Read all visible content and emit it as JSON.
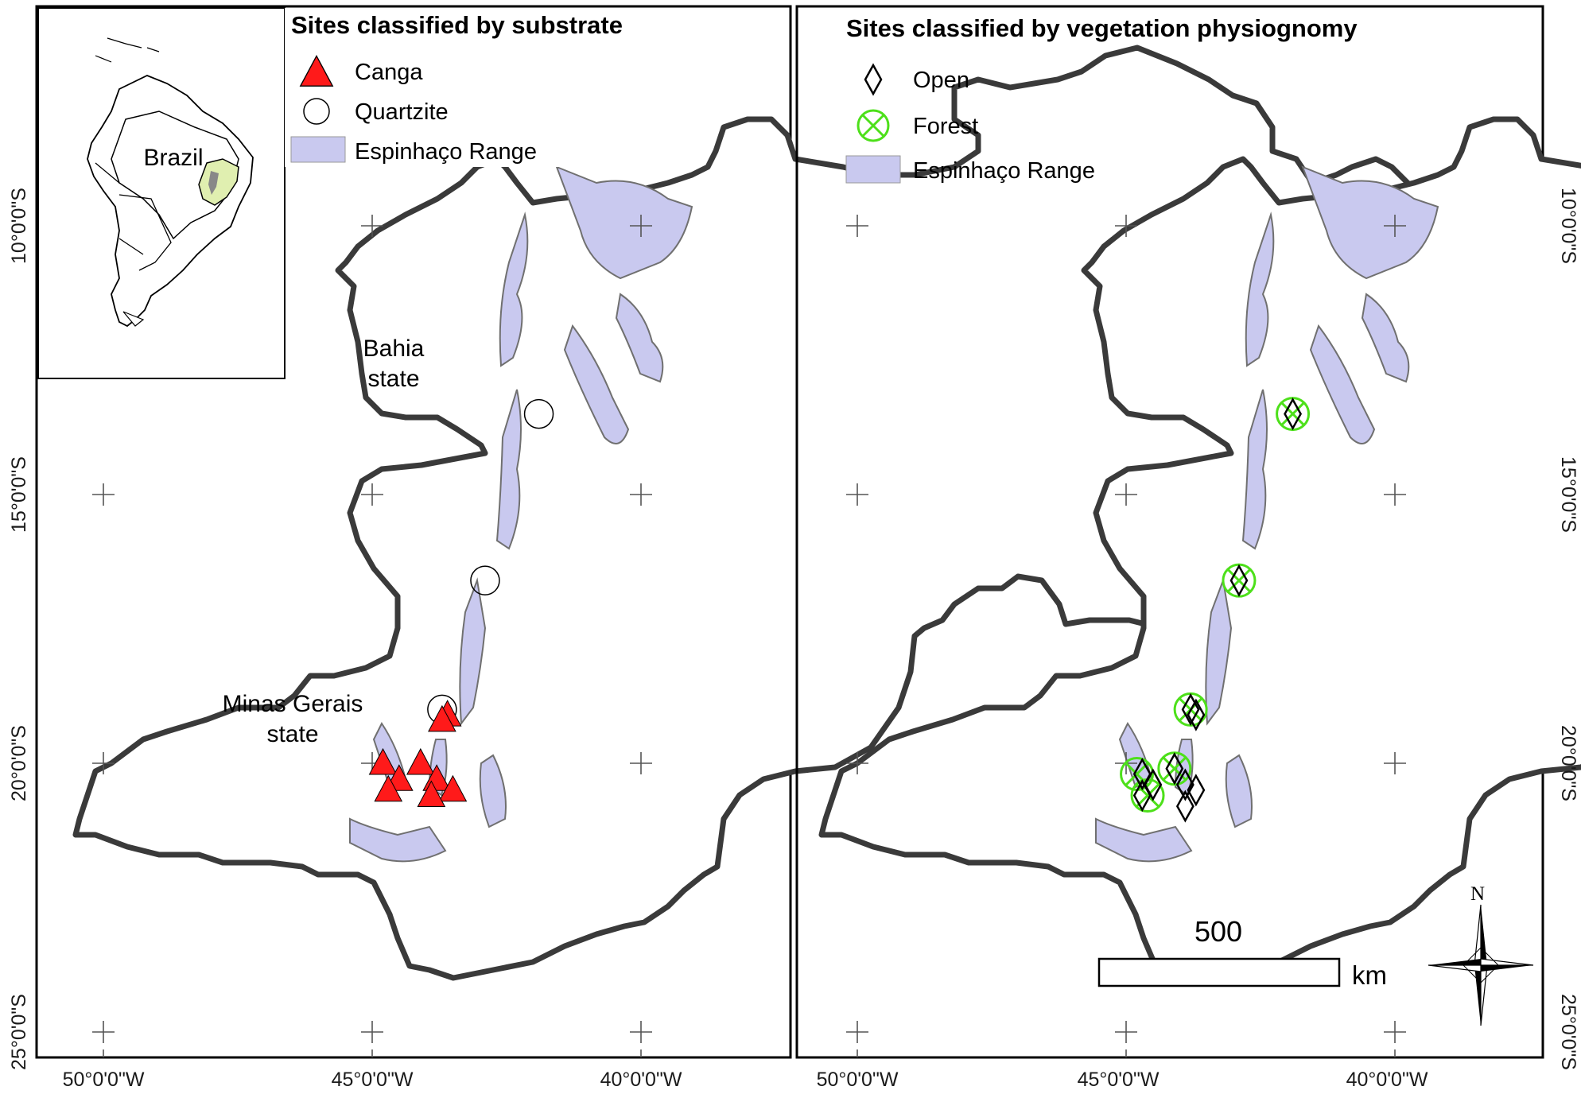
{
  "colors": {
    "canga": "#ff1a1a",
    "forest": "#4de01a",
    "espinhaco": "#c9c9ef",
    "state_border": "#3a3a3a"
  },
  "axes": {
    "lon_labels": [
      "50°0'0\"W",
      "45°0'0\"W",
      "40°0'0\"W"
    ],
    "lat_labels": [
      "10°0'0\"S",
      "15°0'0\"S",
      "20°0'0\"S",
      "25°0'0\"S"
    ]
  },
  "left_panel": {
    "title": "Sites classified by substrate",
    "legend": [
      {
        "label": "Canga",
        "symbol": "red-triangle"
      },
      {
        "label": "Quartzite",
        "symbol": "open-circle"
      },
      {
        "label": "Espinhaço Range",
        "symbol": "lavender-patch"
      }
    ],
    "labels": {
      "bahia_line1": "Bahia",
      "bahia_line2": "state",
      "mg_line1": "Minas Gerais",
      "mg_line2": "state"
    },
    "inset_label": "Brazil"
  },
  "right_panel": {
    "title": "Sites classified by vegetation physiognomy",
    "legend": [
      {
        "label": "Open",
        "symbol": "open-diamond"
      },
      {
        "label": "Forest",
        "symbol": "green-crossed-circle"
      },
      {
        "label": "Espinhaço Range",
        "symbol": "lavender-patch"
      }
    ],
    "scale_bar": {
      "value": "500",
      "unit": "km"
    },
    "north_label": "N"
  },
  "sites": {
    "canga": [
      {
        "lon": -43.6,
        "lat": -19.1
      },
      {
        "lon": -43.7,
        "lat": -19.2
      },
      {
        "lon": -44.8,
        "lat": -20.0
      },
      {
        "lon": -44.5,
        "lat": -20.3
      },
      {
        "lon": -44.7,
        "lat": -20.5
      },
      {
        "lon": -44.1,
        "lat": -20.0
      },
      {
        "lon": -43.8,
        "lat": -20.3
      },
      {
        "lon": -43.5,
        "lat": -20.5
      },
      {
        "lon": -43.9,
        "lat": -20.6
      }
    ],
    "quartzite": [
      {
        "lon": -41.9,
        "lat": -13.5
      },
      {
        "lon": -42.9,
        "lat": -16.6
      },
      {
        "lon": -43.7,
        "lat": -19.0
      }
    ],
    "open": [
      {
        "lon": -41.9,
        "lat": -13.5
      },
      {
        "lon": -42.9,
        "lat": -16.6
      },
      {
        "lon": -43.8,
        "lat": -19.0
      },
      {
        "lon": -43.7,
        "lat": -19.1
      },
      {
        "lon": -44.7,
        "lat": -20.2
      },
      {
        "lon": -44.5,
        "lat": -20.4
      },
      {
        "lon": -44.7,
        "lat": -20.6
      },
      {
        "lon": -44.1,
        "lat": -20.1
      },
      {
        "lon": -43.9,
        "lat": -20.4
      },
      {
        "lon": -43.7,
        "lat": -20.5
      },
      {
        "lon": -43.9,
        "lat": -20.8
      }
    ],
    "forest": [
      {
        "lon": -41.9,
        "lat": -13.5
      },
      {
        "lon": -42.9,
        "lat": -16.6
      },
      {
        "lon": -43.8,
        "lat": -19.0
      },
      {
        "lon": -44.8,
        "lat": -20.2
      },
      {
        "lon": -44.6,
        "lat": -20.6
      },
      {
        "lon": -44.1,
        "lat": -20.1
      }
    ]
  }
}
